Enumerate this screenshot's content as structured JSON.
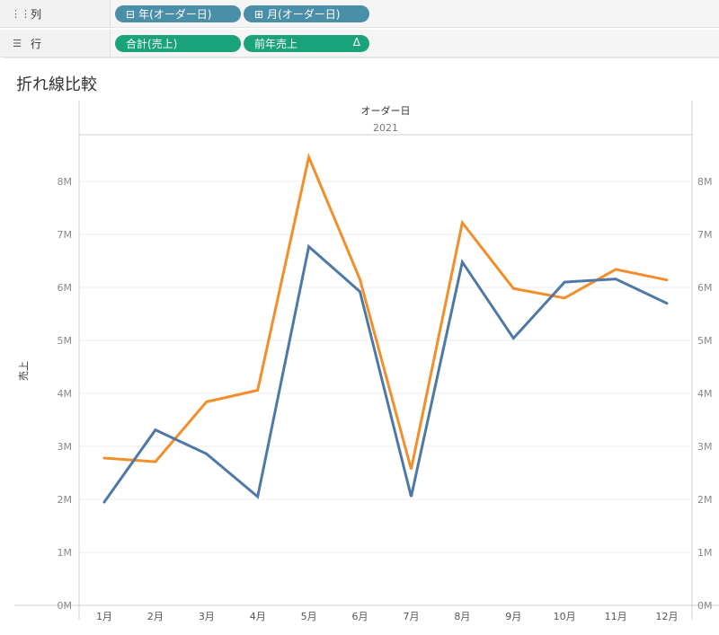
{
  "shelves": {
    "columns": {
      "icon": "columns-icon",
      "label": "列",
      "pills": [
        {
          "label": "年(オーダー日)",
          "icon": "minus-box-icon",
          "color": "#4a8fa8"
        },
        {
          "label": "月(オーダー日)",
          "icon": "plus-box-icon",
          "color": "#4a8fa8"
        }
      ]
    },
    "rows": {
      "icon": "rows-icon",
      "label": "行",
      "pills": [
        {
          "label": "合計(売上)",
          "color": "#1aa37a"
        },
        {
          "label": "前年売上",
          "color": "#1aa37a",
          "badge": "Δ"
        }
      ]
    }
  },
  "sheet_title": "折れ線比較",
  "chart_data": {
    "type": "line",
    "header_field": "オーダー日",
    "header_value": "2021",
    "categories": [
      "1月",
      "2月",
      "3月",
      "4月",
      "5月",
      "6月",
      "7月",
      "8月",
      "9月",
      "10月",
      "11月",
      "12月"
    ],
    "ylabel": "売上",
    "ylim": [
      0,
      8800000
    ],
    "yticks": [
      0,
      1000000,
      2000000,
      3000000,
      4000000,
      5000000,
      6000000,
      7000000,
      8000000
    ],
    "ytick_labels": [
      "0M",
      "1M",
      "2M",
      "3M",
      "4M",
      "5M",
      "6M",
      "7M",
      "8M"
    ],
    "dual_axis": true,
    "grid": true,
    "series": [
      {
        "color": "#4e79a7",
        "values": [
          1950000,
          3310000,
          2860000,
          2050000,
          6770000,
          5920000,
          2050000,
          6480000,
          5040000,
          6100000,
          6160000,
          5700000
        ]
      },
      {
        "color": "#f28e2b",
        "values": [
          2780000,
          2710000,
          3840000,
          4060000,
          8460000,
          6150000,
          2570000,
          7220000,
          5980000,
          5800000,
          6340000,
          6140000
        ]
      }
    ]
  }
}
